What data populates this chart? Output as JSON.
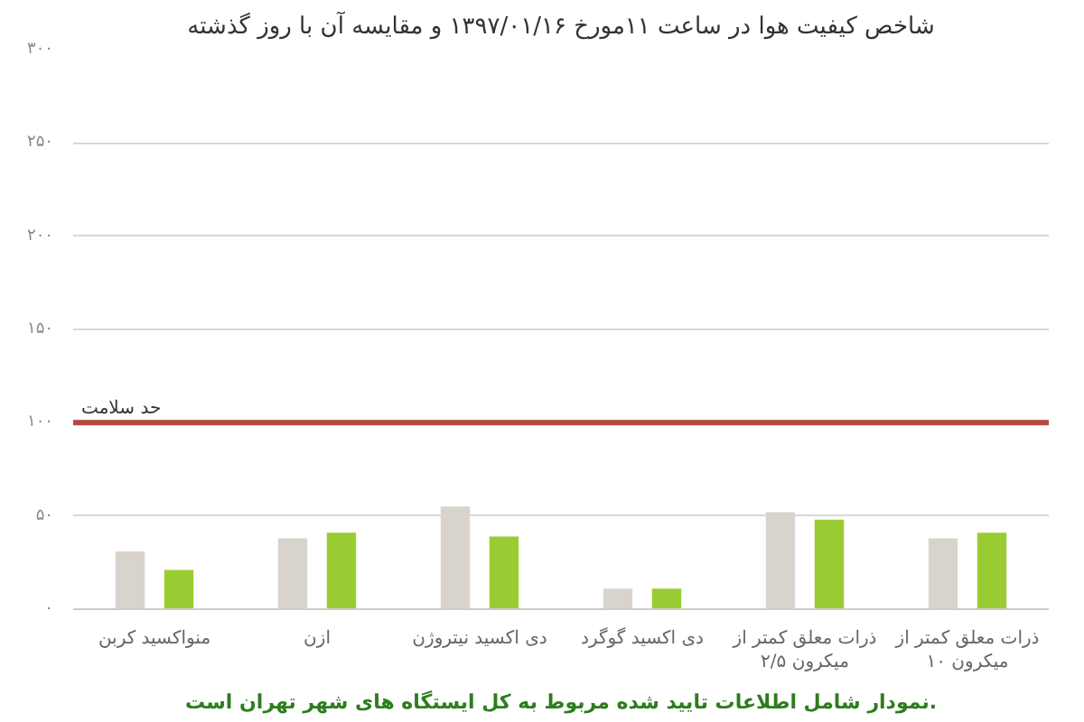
{
  "chart_data": {
    "type": "bar",
    "title": "شاخص کیفیت هوا در ساعت ۱۱مورخ ۱۳۹۷/۰۱/۱۶ و مقایسه آن با روز گذشته",
    "categories": [
      "منواکسید کربن",
      "ازن",
      "دی اکسید نیتروژن",
      "دی اکسید گوگرد",
      "ذرات معلق کمتر از ۲/۵ میکرون",
      "ذرات معلق کمتر از ۱۰ میکرون"
    ],
    "series": [
      {
        "color": "#d9d3ce",
        "values": [
          31,
          38,
          55,
          11,
          52,
          38
        ]
      },
      {
        "color": "#99cc33",
        "values": [
          21,
          41,
          39,
          11,
          48,
          41
        ]
      }
    ],
    "ylim": [
      0,
      300
    ],
    "yticks": [
      {
        "value": 0,
        "label": "۰"
      },
      {
        "value": 50,
        "label": "۵۰"
      },
      {
        "value": 100,
        "label": "۱۰۰"
      },
      {
        "value": 150,
        "label": "۱۵۰"
      },
      {
        "value": 200,
        "label": "۲۰۰"
      },
      {
        "value": 250,
        "label": "۲۵۰"
      },
      {
        "value": 300,
        "label": "۳۰۰"
      }
    ],
    "grid": "y",
    "ref_lines": [
      {
        "axis": "y",
        "value": 100,
        "label": "حد سلامت",
        "color": "#b5473e"
      }
    ],
    "annotations": [
      "نمودار شامل اطلاعات تایید شده مربوط به کل ایستگاه های شهر تهران است."
    ]
  }
}
